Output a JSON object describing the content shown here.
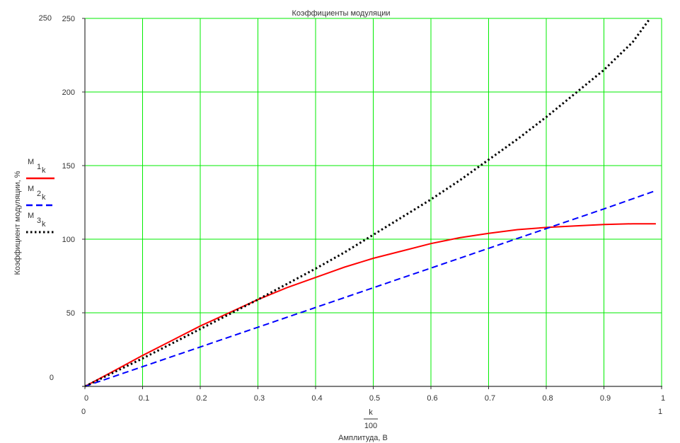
{
  "chart_data": {
    "type": "line",
    "title": "Коэффициенты модуляции",
    "xlabel": "Амплитуда, В",
    "xlabel_expr": {
      "numerator": "k",
      "denominator": "100"
    },
    "ylabel": "Коэффициент модуляции, %",
    "xlim": [
      0,
      1
    ],
    "ylim": [
      0,
      250
    ],
    "x_limit_labels": {
      "min": "0",
      "max": "1"
    },
    "y_limit_labels": {
      "min": "0",
      "max": "250"
    },
    "xticks": [
      "0",
      "0.1",
      "0.2",
      "0.3",
      "0.4",
      "0.5",
      "0.6",
      "0.7",
      "0.8",
      "0.9",
      "1"
    ],
    "yticks": [
      "50",
      "100",
      "150",
      "200",
      "250"
    ],
    "grid": true,
    "grid_color": "#00ee00",
    "legend_placement": "left",
    "series": [
      {
        "name": "M",
        "sub": "1",
        "idx": "k",
        "color": "#ff0000",
        "style": "solid",
        "points": [
          [
            0,
            0
          ],
          [
            0.05,
            10.5
          ],
          [
            0.1,
            21
          ],
          [
            0.15,
            31
          ],
          [
            0.2,
            41
          ],
          [
            0.25,
            50
          ],
          [
            0.3,
            59
          ],
          [
            0.35,
            67
          ],
          [
            0.4,
            74
          ],
          [
            0.45,
            81
          ],
          [
            0.5,
            87
          ],
          [
            0.55,
            92
          ],
          [
            0.6,
            97
          ],
          [
            0.65,
            101
          ],
          [
            0.7,
            104
          ],
          [
            0.75,
            106.5
          ],
          [
            0.8,
            108
          ],
          [
            0.85,
            109
          ],
          [
            0.9,
            110
          ],
          [
            0.95,
            110.5
          ],
          [
            0.99,
            110.5
          ]
        ]
      },
      {
        "name": "M",
        "sub": "2",
        "idx": "k",
        "color": "#0000ff",
        "style": "dashed",
        "points": [
          [
            0,
            0
          ],
          [
            0.1,
            13.4
          ],
          [
            0.2,
            26.8
          ],
          [
            0.3,
            40.2
          ],
          [
            0.4,
            53.6
          ],
          [
            0.5,
            67
          ],
          [
            0.6,
            80.4
          ],
          [
            0.7,
            93.8
          ],
          [
            0.8,
            107.2
          ],
          [
            0.9,
            120.6
          ],
          [
            0.99,
            133
          ]
        ]
      },
      {
        "name": "M",
        "sub": "3",
        "idx": "k",
        "color": "#000000",
        "style": "dotted",
        "points": [
          [
            0,
            0
          ],
          [
            0.05,
            9.5
          ],
          [
            0.1,
            19
          ],
          [
            0.15,
            29
          ],
          [
            0.2,
            39
          ],
          [
            0.25,
            49
          ],
          [
            0.3,
            59
          ],
          [
            0.35,
            69.5
          ],
          [
            0.4,
            80
          ],
          [
            0.45,
            91
          ],
          [
            0.5,
            103
          ],
          [
            0.55,
            115
          ],
          [
            0.6,
            127
          ],
          [
            0.65,
            140
          ],
          [
            0.7,
            154
          ],
          [
            0.75,
            168
          ],
          [
            0.8,
            183
          ],
          [
            0.85,
            199
          ],
          [
            0.9,
            215
          ],
          [
            0.95,
            234
          ],
          [
            0.98,
            250
          ]
        ]
      }
    ]
  }
}
